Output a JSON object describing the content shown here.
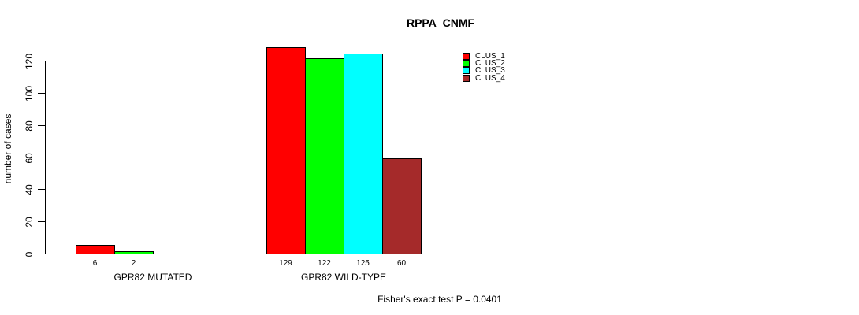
{
  "chart_data": {
    "type": "bar",
    "title": "RPPA_CNMF",
    "ylabel": "number of cases",
    "xlabel": "",
    "ylim": [
      0,
      120
    ],
    "yticks": [
      0,
      20,
      40,
      60,
      80,
      100,
      120
    ],
    "grid": false,
    "categories": [
      "GPR82 MUTATED",
      "GPR82 WILD-TYPE"
    ],
    "series": [
      {
        "name": "CLUS_1",
        "color": "#FF0000",
        "values": [
          6,
          129
        ]
      },
      {
        "name": "CLUS_2",
        "color": "#00FF00",
        "values": [
          2,
          122
        ]
      },
      {
        "name": "CLUS_3",
        "color": "#00FFFF",
        "values": [
          0,
          125
        ]
      },
      {
        "name": "CLUS_4",
        "color": "#A52A2A",
        "values": [
          0,
          60
        ]
      }
    ],
    "value_labels": [
      [
        "6",
        "2",
        "",
        ""
      ],
      [
        "129",
        "122",
        "125",
        "60"
      ]
    ],
    "legend_position": "top-right",
    "annotation": "Fisher's exact test P = 0.0401"
  }
}
